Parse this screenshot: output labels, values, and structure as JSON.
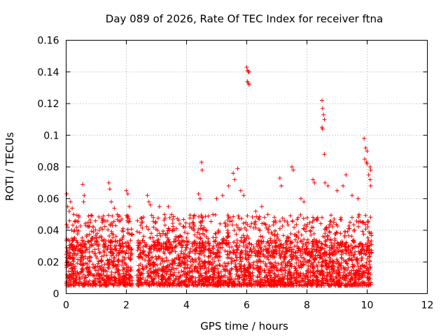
{
  "chart_data": {
    "type": "scatter",
    "title": "Day 089 of 2026, Rate Of TEC Index for receiver ftna",
    "xlabel": "GPS time / hours",
    "ylabel": "ROTI / TECUs",
    "xlim": [
      0,
      12
    ],
    "ylim": [
      0,
      0.16
    ],
    "xticks": [
      0,
      2,
      4,
      6,
      8,
      10,
      12
    ],
    "yticks": [
      0,
      0.02,
      0.04,
      0.06,
      0.08,
      0.1,
      0.12,
      0.14,
      0.16
    ],
    "ytick_labels": [
      "0",
      "0.02",
      "0.04",
      "0.06",
      "0.08",
      "0.1",
      "0.12",
      "0.14",
      "0.16"
    ],
    "xtick_labels": [
      "0",
      "2",
      "4",
      "6",
      "8",
      "10",
      "12"
    ],
    "grid": true,
    "marker": "+",
    "color": "#ff0000",
    "data_extent_hours": [
      0,
      10.15
    ],
    "series": [
      {
        "name": "ROTI",
        "note": "dense scatter; representative points read from figure",
        "points": [
          [
            0.02,
            0.063
          ],
          [
            0.05,
            0.055
          ],
          [
            0.1,
            0.052
          ],
          [
            0.15,
            0.058
          ],
          [
            0.2,
            0.054
          ],
          [
            0.25,
            0.05
          ],
          [
            0.3,
            0.046
          ],
          [
            0.35,
            0.042
          ],
          [
            0.55,
            0.069
          ],
          [
            0.6,
            0.062
          ],
          [
            0.58,
            0.058
          ],
          [
            0.8,
            0.045
          ],
          [
            0.9,
            0.042
          ],
          [
            1.1,
            0.04
          ],
          [
            1.2,
            0.045
          ],
          [
            1.42,
            0.07
          ],
          [
            1.45,
            0.066
          ],
          [
            1.5,
            0.058
          ],
          [
            1.6,
            0.054
          ],
          [
            1.7,
            0.05
          ],
          [
            1.8,
            0.046
          ],
          [
            2.0,
            0.065
          ],
          [
            2.05,
            0.063
          ],
          [
            2.1,
            0.055
          ],
          [
            2.5,
            0.045
          ],
          [
            2.7,
            0.062
          ],
          [
            2.75,
            0.058
          ],
          [
            2.8,
            0.056
          ],
          [
            2.9,
            0.048
          ],
          [
            3.1,
            0.055
          ],
          [
            3.4,
            0.055
          ],
          [
            3.5,
            0.05
          ],
          [
            4.2,
            0.045
          ],
          [
            4.25,
            0.04
          ],
          [
            4.4,
            0.063
          ],
          [
            4.45,
            0.06
          ],
          [
            4.5,
            0.083
          ],
          [
            4.52,
            0.078
          ],
          [
            5.0,
            0.06
          ],
          [
            5.2,
            0.062
          ],
          [
            5.4,
            0.068
          ],
          [
            5.55,
            0.076
          ],
          [
            5.6,
            0.072
          ],
          [
            5.7,
            0.079
          ],
          [
            5.8,
            0.065
          ],
          [
            5.9,
            0.062
          ],
          [
            6.0,
            0.143
          ],
          [
            6.03,
            0.141
          ],
          [
            6.05,
            0.14
          ],
          [
            6.08,
            0.14
          ],
          [
            6.02,
            0.134
          ],
          [
            6.05,
            0.133
          ],
          [
            6.08,
            0.132
          ],
          [
            6.3,
            0.052
          ],
          [
            6.5,
            0.055
          ],
          [
            6.7,
            0.05
          ],
          [
            7.1,
            0.073
          ],
          [
            7.15,
            0.068
          ],
          [
            7.5,
            0.08
          ],
          [
            7.55,
            0.078
          ],
          [
            7.8,
            0.06
          ],
          [
            7.9,
            0.058
          ],
          [
            8.2,
            0.072
          ],
          [
            8.25,
            0.07
          ],
          [
            8.5,
            0.122
          ],
          [
            8.52,
            0.117
          ],
          [
            8.55,
            0.113
          ],
          [
            8.58,
            0.11
          ],
          [
            8.5,
            0.105
          ],
          [
            8.52,
            0.104
          ],
          [
            8.58,
            0.088
          ],
          [
            8.6,
            0.07
          ],
          [
            8.7,
            0.068
          ],
          [
            9.0,
            0.065
          ],
          [
            9.2,
            0.068
          ],
          [
            9.3,
            0.075
          ],
          [
            9.5,
            0.062
          ],
          [
            9.7,
            0.06
          ],
          [
            9.9,
            0.098
          ],
          [
            9.95,
            0.092
          ],
          [
            10.0,
            0.09
          ],
          [
            9.92,
            0.085
          ],
          [
            9.98,
            0.083
          ],
          [
            10.0,
            0.082
          ],
          [
            10.1,
            0.08
          ],
          [
            10.12,
            0.078
          ],
          [
            10.05,
            0.075
          ],
          [
            10.1,
            0.072
          ],
          [
            10.12,
            0.068
          ]
        ],
        "baseline_band": [
          0.005,
          0.03
        ],
        "gaps_hours": [
          [
            2.2,
            2.35
          ]
        ]
      }
    ]
  }
}
